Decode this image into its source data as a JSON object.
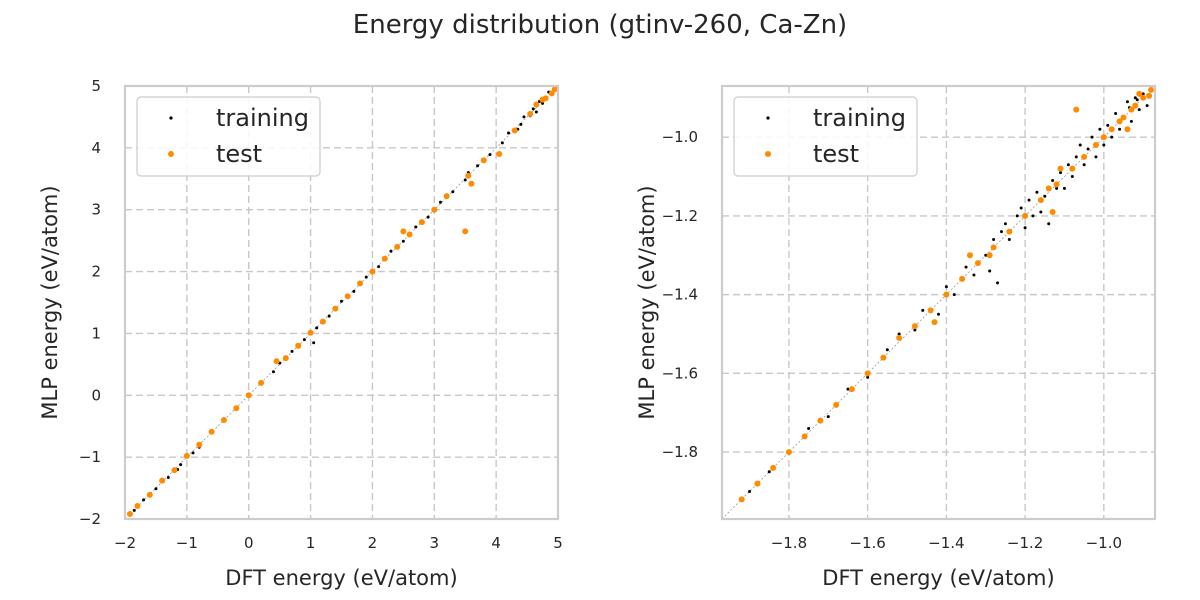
{
  "figure": {
    "title": "Energy distribution (gtinv-260, Ca-Zn)"
  },
  "chart_data": [
    {
      "type": "scatter",
      "xlabel": "DFT energy (eV/atom)",
      "ylabel": "MLP energy (eV/atom)",
      "xlim": [
        -2,
        5
      ],
      "ylim": [
        -2,
        5
      ],
      "xticks": [
        -2,
        -1,
        0,
        1,
        2,
        3,
        4,
        5
      ],
      "yticks": [
        -2,
        -1,
        0,
        1,
        2,
        3,
        4,
        5
      ],
      "xtick_labels": [
        "−2",
        "−1",
        "0",
        "1",
        "2",
        "3",
        "4",
        "5"
      ],
      "ytick_labels": [
        "−2",
        "−1",
        "0",
        "1",
        "2",
        "3",
        "4",
        "5"
      ],
      "grid": true,
      "legend_placement": "top-left",
      "series": [
        {
          "name": "training",
          "color": "#000000",
          "points": [
            [
              -1.92,
              -1.92
            ],
            [
              -1.85,
              -1.86
            ],
            [
              -1.7,
              -1.69
            ],
            [
              -1.5,
              -1.51
            ],
            [
              -1.3,
              -1.33
            ],
            [
              -1.15,
              -1.2
            ],
            [
              -1.1,
              -1.12
            ],
            [
              -0.9,
              -0.93
            ],
            [
              -0.8,
              -0.84
            ],
            [
              -0.6,
              -0.61
            ],
            [
              -0.4,
              -0.41
            ],
            [
              -0.2,
              -0.2
            ],
            [
              0.0,
              0.01
            ],
            [
              0.2,
              0.19
            ],
            [
              0.4,
              0.38
            ],
            [
              0.5,
              0.52
            ],
            [
              0.7,
              0.71
            ],
            [
              0.9,
              0.9
            ],
            [
              1.05,
              0.85
            ],
            [
              1.1,
              1.09
            ],
            [
              1.3,
              1.28
            ],
            [
              1.5,
              1.52
            ],
            [
              1.7,
              1.68
            ],
            [
              1.9,
              1.91
            ],
            [
              2.1,
              2.08
            ],
            [
              2.3,
              2.33
            ],
            [
              2.5,
              2.49
            ],
            [
              2.7,
              2.72
            ],
            [
              2.9,
              2.88
            ],
            [
              3.1,
              3.12
            ],
            [
              3.3,
              3.29
            ],
            [
              3.5,
              3.48
            ],
            [
              3.7,
              3.71
            ],
            [
              3.9,
              3.89
            ],
            [
              4.1,
              4.08
            ],
            [
              4.2,
              4.24
            ],
            [
              4.35,
              4.3
            ],
            [
              4.45,
              4.5
            ],
            [
              4.55,
              4.52
            ],
            [
              4.6,
              4.63
            ],
            [
              4.65,
              4.58
            ],
            [
              4.7,
              4.75
            ],
            [
              4.75,
              4.72
            ],
            [
              4.8,
              4.82
            ],
            [
              4.85,
              4.9
            ],
            [
              4.9,
              4.88
            ],
            [
              4.4,
              4.38
            ],
            [
              3.55,
              3.6
            ]
          ]
        },
        {
          "name": "test",
          "color": "#ff8c00",
          "points": [
            [
              -1.92,
              -1.92
            ],
            [
              -1.8,
              -1.79
            ],
            [
              -1.6,
              -1.61
            ],
            [
              -1.4,
              -1.38
            ],
            [
              -1.2,
              -1.21
            ],
            [
              -1.0,
              -0.98
            ],
            [
              -0.8,
              -0.8
            ],
            [
              -0.6,
              -0.59
            ],
            [
              -0.4,
              -0.4
            ],
            [
              -0.2,
              -0.21
            ],
            [
              0.0,
              0.0
            ],
            [
              0.2,
              0.2
            ],
            [
              0.45,
              0.55
            ],
            [
              0.6,
              0.6
            ],
            [
              0.8,
              0.8
            ],
            [
              1.0,
              1.01
            ],
            [
              1.2,
              1.19
            ],
            [
              1.4,
              1.4
            ],
            [
              1.6,
              1.6
            ],
            [
              1.8,
              1.81
            ],
            [
              2.0,
              2.0
            ],
            [
              2.2,
              2.21
            ],
            [
              2.4,
              2.4
            ],
            [
              2.5,
              2.65
            ],
            [
              2.6,
              2.6
            ],
            [
              2.8,
              2.8
            ],
            [
              3.0,
              3.0
            ],
            [
              3.2,
              3.22
            ],
            [
              3.5,
              2.65
            ],
            [
              3.6,
              3.42
            ],
            [
              3.55,
              3.55
            ],
            [
              3.8,
              3.8
            ],
            [
              4.05,
              3.9
            ],
            [
              4.3,
              4.28
            ],
            [
              4.55,
              4.55
            ],
            [
              4.65,
              4.7
            ],
            [
              4.75,
              4.78
            ],
            [
              4.8,
              4.8
            ],
            [
              4.9,
              4.88
            ],
            [
              4.95,
              4.95
            ]
          ]
        }
      ]
    },
    {
      "type": "scatter",
      "xlabel": "DFT energy (eV/atom)",
      "ylabel": "MLP energy (eV/atom)",
      "xlim": [
        -1.97,
        -0.87
      ],
      "ylim": [
        -1.97,
        -0.87
      ],
      "xticks": [
        -1.8,
        -1.6,
        -1.4,
        -1.2,
        -1.0
      ],
      "yticks": [
        -1.8,
        -1.6,
        -1.4,
        -1.2,
        -1.0
      ],
      "xtick_labels": [
        "−1.8",
        "−1.6",
        "−1.4",
        "−1.2",
        "−1.0"
      ],
      "ytick_labels": [
        "−1.8",
        "−1.6",
        "−1.4",
        "−1.2",
        "−1.0"
      ],
      "grid": true,
      "legend_placement": "top-left",
      "series": [
        {
          "name": "training",
          "color": "#000000",
          "points": [
            [
              -1.9,
              -1.9
            ],
            [
              -1.85,
              -1.85
            ],
            [
              -1.8,
              -1.8
            ],
            [
              -1.75,
              -1.74
            ],
            [
              -1.7,
              -1.71
            ],
            [
              -1.65,
              -1.64
            ],
            [
              -1.6,
              -1.61
            ],
            [
              -1.55,
              -1.54
            ],
            [
              -1.52,
              -1.5
            ],
            [
              -1.48,
              -1.49
            ],
            [
              -1.46,
              -1.44
            ],
            [
              -1.42,
              -1.45
            ],
            [
              -1.4,
              -1.38
            ],
            [
              -1.38,
              -1.4
            ],
            [
              -1.35,
              -1.33
            ],
            [
              -1.33,
              -1.35
            ],
            [
              -1.3,
              -1.3
            ],
            [
              -1.29,
              -1.34
            ],
            [
              -1.28,
              -1.26
            ],
            [
              -1.27,
              -1.37
            ],
            [
              -1.26,
              -1.24
            ],
            [
              -1.25,
              -1.22
            ],
            [
              -1.24,
              -1.26
            ],
            [
              -1.22,
              -1.2
            ],
            [
              -1.21,
              -1.18
            ],
            [
              -1.2,
              -1.23
            ],
            [
              -1.19,
              -1.16
            ],
            [
              -1.18,
              -1.2
            ],
            [
              -1.17,
              -1.14
            ],
            [
              -1.16,
              -1.19
            ],
            [
              -1.15,
              -1.15
            ],
            [
              -1.14,
              -1.22
            ],
            [
              -1.13,
              -1.11
            ],
            [
              -1.12,
              -1.13
            ],
            [
              -1.11,
              -1.09
            ],
            [
              -1.1,
              -1.13
            ],
            [
              -1.09,
              -1.07
            ],
            [
              -1.08,
              -1.1
            ],
            [
              -1.07,
              -1.05
            ],
            [
              -1.06,
              -1.02
            ],
            [
              -1.05,
              -1.07
            ],
            [
              -1.04,
              -1.03
            ],
            [
              -1.03,
              -1.0
            ],
            [
              -1.02,
              -1.05
            ],
            [
              -1.01,
              -0.98
            ],
            [
              -1.0,
              -1.02
            ],
            [
              -0.99,
              -0.97
            ],
            [
              -0.98,
              -1.0
            ],
            [
              -0.97,
              -0.94
            ],
            [
              -0.96,
              -0.98
            ],
            [
              -0.95,
              -0.95
            ],
            [
              -0.94,
              -0.91
            ],
            [
              -0.93,
              -0.96
            ],
            [
              -0.92,
              -0.9
            ],
            [
              -0.91,
              -0.93
            ],
            [
              -0.9,
              -0.89
            ],
            [
              -0.89,
              -0.92
            ],
            [
              -0.88,
              -0.88
            ],
            [
              -0.935,
              -0.925
            ],
            [
              -0.915,
              -0.905
            ]
          ]
        },
        {
          "name": "test",
          "color": "#ff8c00",
          "points": [
            [
              -1.92,
              -1.92
            ],
            [
              -1.88,
              -1.88
            ],
            [
              -1.84,
              -1.84
            ],
            [
              -1.8,
              -1.8
            ],
            [
              -1.76,
              -1.76
            ],
            [
              -1.72,
              -1.72
            ],
            [
              -1.68,
              -1.68
            ],
            [
              -1.64,
              -1.64
            ],
            [
              -1.6,
              -1.6
            ],
            [
              -1.56,
              -1.56
            ],
            [
              -1.52,
              -1.51
            ],
            [
              -1.48,
              -1.48
            ],
            [
              -1.44,
              -1.44
            ],
            [
              -1.43,
              -1.47
            ],
            [
              -1.4,
              -1.4
            ],
            [
              -1.36,
              -1.36
            ],
            [
              -1.34,
              -1.3
            ],
            [
              -1.32,
              -1.32
            ],
            [
              -1.29,
              -1.3
            ],
            [
              -1.28,
              -1.28
            ],
            [
              -1.24,
              -1.24
            ],
            [
              -1.2,
              -1.2
            ],
            [
              -1.16,
              -1.16
            ],
            [
              -1.14,
              -1.13
            ],
            [
              -1.13,
              -1.19
            ],
            [
              -1.12,
              -1.12
            ],
            [
              -1.11,
              -1.08
            ],
            [
              -1.08,
              -1.08
            ],
            [
              -1.07,
              -0.93
            ],
            [
              -1.05,
              -1.05
            ],
            [
              -1.02,
              -1.02
            ],
            [
              -1.0,
              -1.0
            ],
            [
              -0.98,
              -0.98
            ],
            [
              -0.96,
              -0.96
            ],
            [
              -0.95,
              -0.95
            ],
            [
              -0.94,
              -0.98
            ],
            [
              -0.93,
              -0.93
            ],
            [
              -0.92,
              -0.92
            ],
            [
              -0.9,
              -0.9
            ],
            [
              -0.88,
              -0.88
            ],
            [
              -0.91,
              -0.89
            ],
            [
              -0.885,
              -0.895
            ]
          ]
        }
      ]
    }
  ]
}
